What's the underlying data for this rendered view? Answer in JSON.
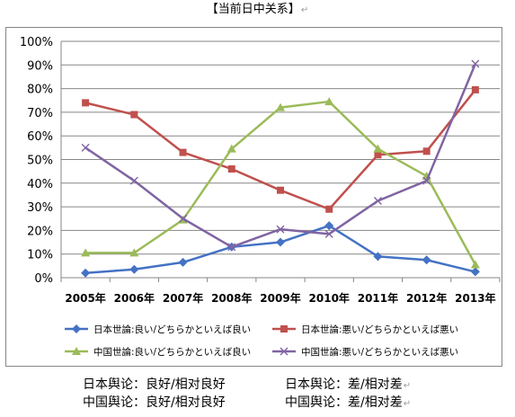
{
  "title": "【当前日中关系】",
  "chart_data": {
    "type": "line",
    "categories": [
      "2005年",
      "2006年",
      "2007年",
      "2008年",
      "2009年",
      "2010年",
      "2011年",
      "2012年",
      "2013年"
    ],
    "ylim": [
      0,
      100
    ],
    "yticks": [
      "0%",
      "10%",
      "20%",
      "30%",
      "40%",
      "50%",
      "60%",
      "70%",
      "80%",
      "90%",
      "100%"
    ],
    "grid": true,
    "legend_position": "bottom",
    "series": [
      {
        "name": "日本世論:良い/どちらかといえば良い",
        "color": "#4472C4",
        "marker": "diamond",
        "values": [
          2,
          3.5,
          6.5,
          13,
          15,
          22,
          9,
          7.5,
          2.5
        ]
      },
      {
        "name": "日本世論:悪い/どちらかといえば悪い",
        "color": "#C0504D",
        "marker": "square",
        "values": [
          74,
          69,
          53,
          46,
          37,
          29,
          52,
          53.5,
          79.5
        ]
      },
      {
        "name": "中国世論:良い/どちらかといえば良い",
        "color": "#9BBB59",
        "marker": "triangle",
        "values": [
          10.5,
          10.5,
          24.5,
          54.5,
          72,
          74.5,
          54.5,
          43,
          5.5
        ]
      },
      {
        "name": "中国世論:悪い/どちらかといえば悪い",
        "color": "#8064A2",
        "marker": "x",
        "values": [
          55,
          41,
          25,
          13,
          20.5,
          18.5,
          32.5,
          41,
          90.5
        ]
      }
    ]
  },
  "captions": {
    "japan_good": "日本舆论：良好/相对良好",
    "japan_bad": "日本舆论：差/相对差",
    "china_good": "中国舆论：良好/相对良好",
    "china_bad": "中国舆论：差/相对差",
    "return_mark": "↵"
  }
}
